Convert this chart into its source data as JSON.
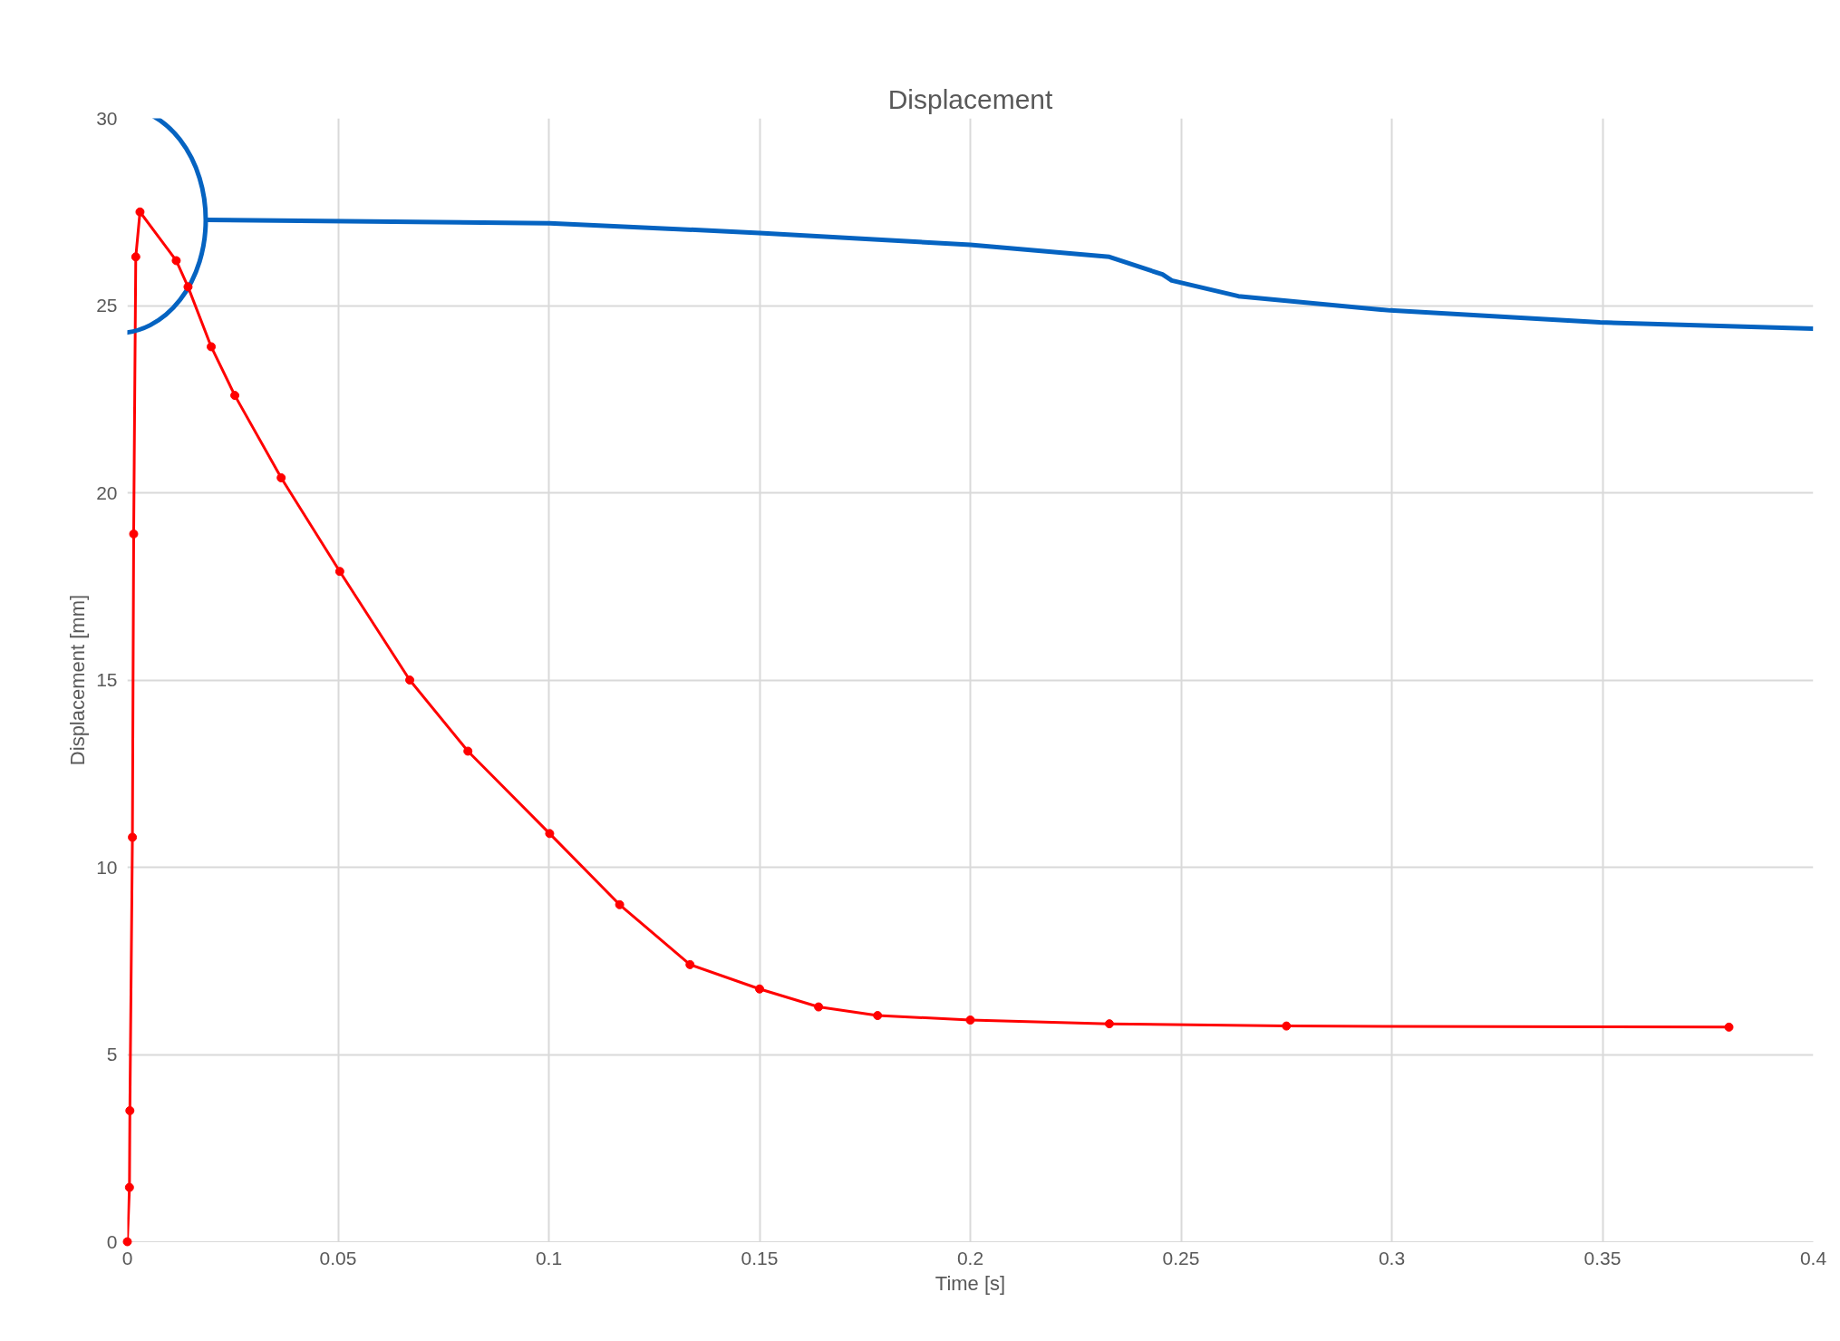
{
  "chart_data": {
    "type": "line",
    "title": "Displacement",
    "xlabel": "Time [s]",
    "ylabel": "Displacement [mm]",
    "xlim": [
      0,
      0.4
    ],
    "xticks": [
      0,
      0.05,
      0.1,
      0.15,
      0.2,
      0.25,
      0.3,
      0.35,
      0.4
    ],
    "ylim": [
      0,
      30
    ],
    "yticks": [
      0,
      5,
      10,
      15,
      20,
      25,
      30
    ],
    "grid": true,
    "marker": "circle",
    "line_style": "solid",
    "series": [
      {
        "color": "#ff0000",
        "x": [
          0,
          0.0005,
          0.0006,
          0.0012,
          0.0015,
          0.002,
          0.003,
          0.0116,
          0.0144,
          0.0199,
          0.0255,
          0.0365,
          0.0504,
          0.067,
          0.0808,
          0.1002,
          0.1168,
          0.1335,
          0.15,
          0.164,
          0.178,
          0.2,
          0.233,
          0.275,
          0.38
        ],
        "values": [
          0,
          1.45,
          3.5,
          10.8,
          18.9,
          26.3,
          27.5,
          26.2,
          25.5,
          23.9,
          22.6,
          20.4,
          17.9,
          15.0,
          13.1,
          10.9,
          9.0,
          7.4,
          6.75,
          6.27,
          6.04,
          5.92,
          5.82,
          5.76,
          5.73
        ]
      },
      {
        "color": "#0563c1",
        "marker": "none",
        "x": [
          0.0186,
          0.1002,
          0.15,
          0.2,
          0.233,
          0.2456,
          0.2478,
          0.2636,
          0.2996,
          0.3494,
          0.4
        ],
        "values": [
          27.29,
          27.2,
          26.94,
          26.62,
          26.3,
          25.83,
          25.67,
          25.25,
          24.87,
          24.55,
          24.38
        ]
      }
    ]
  }
}
